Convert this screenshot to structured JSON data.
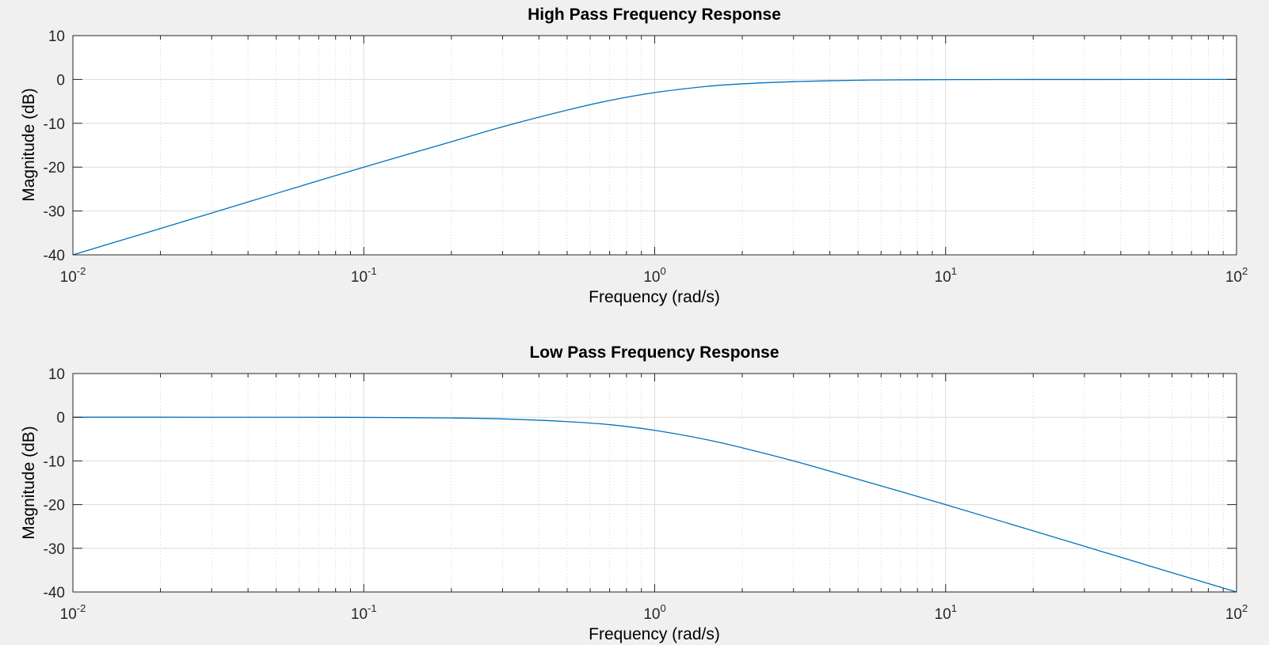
{
  "chart_data": [
    {
      "type": "line",
      "title": "High Pass Frequency Response",
      "xlabel": "Frequency  (rad/s)",
      "ylabel": "Magnitude (dB)",
      "xscale": "log",
      "xlim": [
        0.01,
        100
      ],
      "ylim": [
        -40,
        10
      ],
      "xtick_labels": [
        {
          "base": "10",
          "exp": "-2"
        },
        {
          "base": "10",
          "exp": "-1"
        },
        {
          "base": "10",
          "exp": "0"
        },
        {
          "base": "10",
          "exp": "1"
        },
        {
          "base": "10",
          "exp": "2"
        }
      ],
      "ytick_labels": [
        "10",
        "0",
        "-10",
        "-20",
        "-30",
        "-40"
      ],
      "grid": true,
      "series": [
        {
          "color": "#0072BD",
          "x": [
            0.01,
            0.02,
            0.05,
            0.1,
            0.2,
            0.3,
            0.5,
            0.7,
            1,
            1.5,
            2,
            3,
            5,
            7,
            10,
            20,
            50,
            100
          ],
          "y": [
            -40,
            -34,
            -26,
            -20,
            -14.2,
            -10.8,
            -7.0,
            -4.8,
            -3.0,
            -1.6,
            -1.0,
            -0.5,
            -0.17,
            -0.09,
            -0.04,
            -0.01,
            0,
            0
          ]
        }
      ]
    },
    {
      "type": "line",
      "title": "Low Pass Frequency Response",
      "xlabel": "Frequency  (rad/s)",
      "ylabel": "Magnitude (dB)",
      "xscale": "log",
      "xlim": [
        0.01,
        100
      ],
      "ylim": [
        -40,
        10
      ],
      "xtick_labels": [
        {
          "base": "10",
          "exp": "-2"
        },
        {
          "base": "10",
          "exp": "-1"
        },
        {
          "base": "10",
          "exp": "0"
        },
        {
          "base": "10",
          "exp": "1"
        },
        {
          "base": "10",
          "exp": "2"
        }
      ],
      "ytick_labels": [
        "10",
        "0",
        "-10",
        "-20",
        "-30",
        "-40"
      ],
      "grid": true,
      "series": [
        {
          "color": "#0072BD",
          "x": [
            0.01,
            0.02,
            0.05,
            0.1,
            0.2,
            0.3,
            0.5,
            0.7,
            1,
            1.5,
            2,
            3,
            5,
            7,
            10,
            20,
            50,
            100
          ],
          "y": [
            0,
            0,
            -0.01,
            -0.04,
            -0.17,
            -0.38,
            -1.0,
            -1.7,
            -3.0,
            -5.1,
            -7.0,
            -10.0,
            -14.2,
            -17.0,
            -20,
            -26,
            -34,
            -40
          ]
        }
      ]
    }
  ]
}
